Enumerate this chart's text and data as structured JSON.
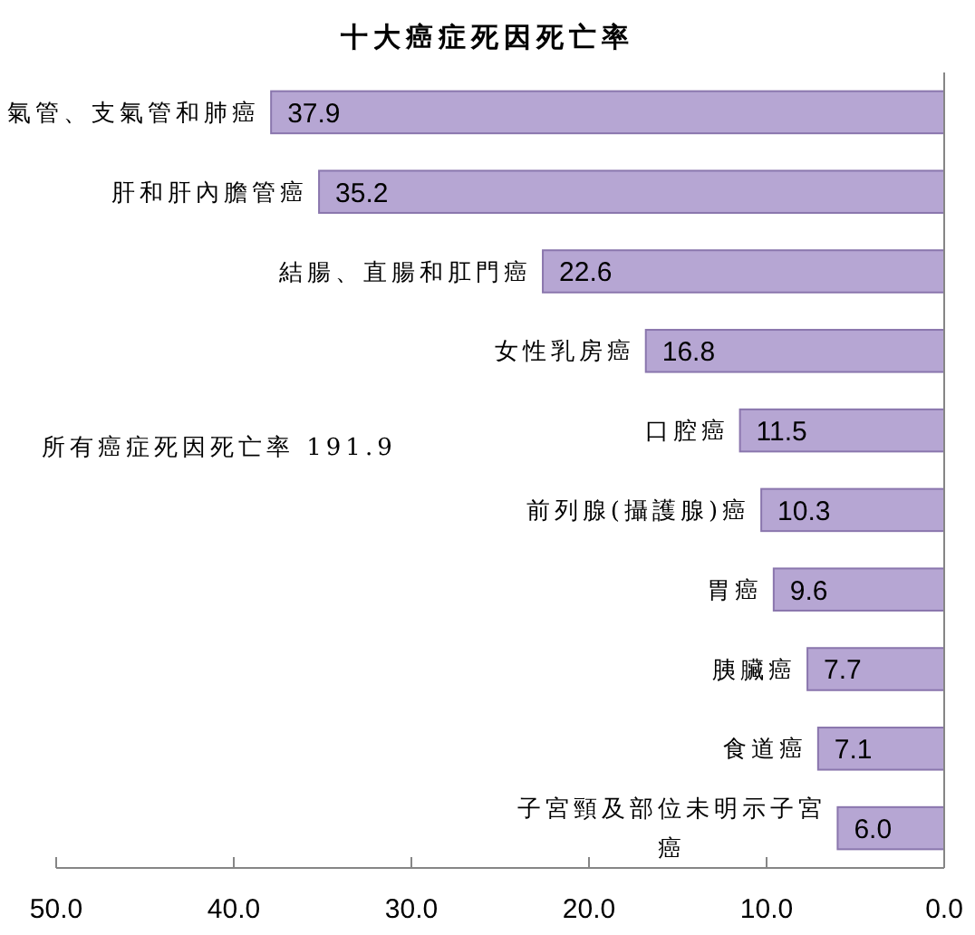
{
  "chart_data": {
    "type": "bar",
    "orientation": "horizontal",
    "title": "十大癌症死因死亡率",
    "categories": [
      "氣管、支氣管和肺癌",
      "肝和肝內膽管癌",
      "結腸、直腸和肛門癌",
      "女性乳房癌",
      "口腔癌",
      "前列腺(攝護腺)癌",
      "胃癌",
      "胰臟癌",
      "食道癌",
      "子宮頸及部位未明示子宮癌"
    ],
    "values": [
      37.9,
      35.2,
      22.6,
      16.8,
      11.5,
      10.3,
      9.6,
      7.7,
      7.1,
      6.0
    ],
    "value_labels": [
      "37.9",
      "35.2",
      "22.6",
      "16.8",
      "11.5",
      "10.3",
      "9.6",
      "7.7",
      "7.1",
      "6.0"
    ],
    "color": "#b6a6d3",
    "xlim": [
      50,
      0
    ],
    "xticks": [
      {
        "value": 50,
        "label": "50.0"
      },
      {
        "value": 40,
        "label": "40.0"
      },
      {
        "value": 30,
        "label": "30.0"
      },
      {
        "value": 20,
        "label": "20.0"
      },
      {
        "value": 10,
        "label": "10.0"
      },
      {
        "value": 0,
        "label": "0.0"
      }
    ],
    "annotations": [
      "所有癌症死因死亡率 191.9"
    ]
  }
}
